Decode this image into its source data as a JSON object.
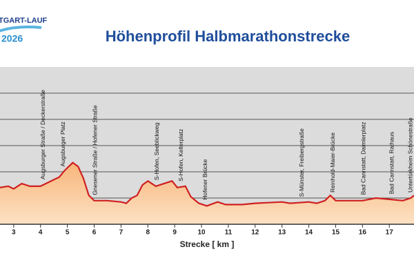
{
  "logo": {
    "name": "TGART-LAUF",
    "year": "2026"
  },
  "chart_data": {
    "type": "area",
    "title": "Höhenprofil Halbmarathonstrecke",
    "x_label": "Strecke [ km ]",
    "x": [
      2.49,
      2.8,
      3.0,
      3.3,
      3.6,
      4.0,
      4.4,
      4.7,
      4.9,
      5.2,
      5.4,
      5.6,
      5.8,
      6.0,
      6.5,
      7.0,
      7.2,
      7.4,
      7.6,
      7.8,
      8.0,
      8.3,
      8.6,
      8.9,
      9.1,
      9.4,
      9.6,
      9.9,
      10.2,
      10.6,
      10.9,
      11.5,
      12.0,
      13.0,
      13.3,
      14.0,
      14.3,
      14.6,
      14.8,
      15.0,
      15.5,
      16.0,
      16.5,
      17.0,
      17.5,
      17.8,
      17.92
    ],
    "values": [
      228,
      229,
      227,
      231,
      229,
      229,
      233,
      236,
      241,
      247,
      244,
      235,
      222,
      218,
      218,
      217,
      216,
      220,
      222,
      230,
      233,
      229,
      231,
      233,
      228,
      229,
      221,
      216,
      214,
      217,
      215,
      215,
      216,
      217,
      216,
      217,
      216,
      218,
      222,
      218,
      218,
      218,
      220,
      219,
      218,
      220,
      222
    ],
    "line_color": "#d01f1f",
    "fill_color": "#f7b57a",
    "xlim": [
      2.49,
      17.92
    ],
    "xticks": [
      3,
      4,
      5,
      6,
      7,
      8,
      9,
      10,
      11,
      12,
      13,
      14,
      15,
      16,
      17
    ],
    "ylim": [
      200,
      320
    ],
    "ygrid": [
      200,
      220,
      240,
      260,
      280,
      300
    ],
    "annotations": [
      {
        "x": 4.1,
        "text": "Augsburger Straße / Deckerstraße"
      },
      {
        "x": 4.85,
        "text": "Augsburger Platz"
      },
      {
        "x": 6.05,
        "text": "Gnesener Straße / Hofener Straße"
      },
      {
        "x": 8.35,
        "text": "S-Hofen, Seeblickweg"
      },
      {
        "x": 9.25,
        "text": "S-Hofen, Kelterplatz"
      },
      {
        "x": 10.15,
        "text": "Hofener Brücke"
      },
      {
        "x": 13.75,
        "text": "S-Münster, Freibergstraße"
      },
      {
        "x": 14.9,
        "text": "Reinhold-Maier-Brücke"
      },
      {
        "x": 16.05,
        "text": "Bad Cannstatt, Daimlerplatz"
      },
      {
        "x": 17.1,
        "text": "Bad Cannstatt, Rathaus"
      },
      {
        "x": 17.8,
        "text": "Untertürkheim Schönestraße"
      }
    ]
  }
}
